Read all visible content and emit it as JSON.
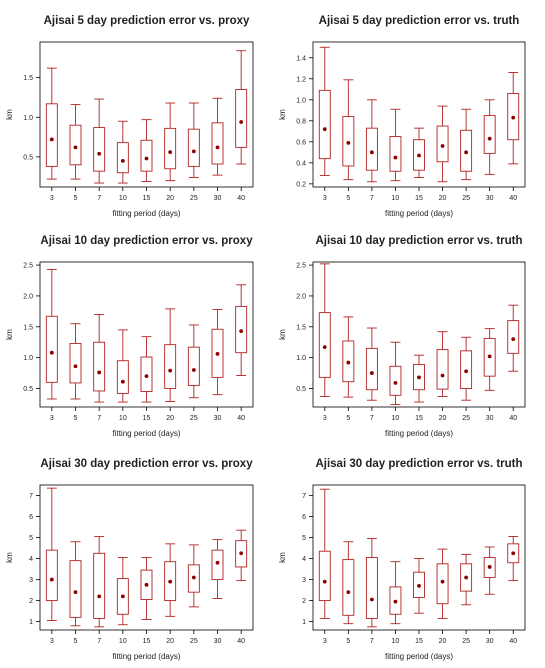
{
  "colors": {
    "box": "#b22222",
    "median": "#8b0000",
    "axis": "#000000",
    "text": "#222222"
  },
  "chart_data": [
    {
      "type": "box",
      "title": "Ajisai 5 day prediction error vs. proxy",
      "xlabel": "fitting period (days)",
      "ylabel": "km",
      "categories": [
        "3",
        "5",
        "7",
        "10",
        "15",
        "20",
        "25",
        "30",
        "40"
      ],
      "ylim": [
        0.12,
        1.95
      ],
      "yticks": [
        0.5,
        1.0,
        1.5
      ],
      "ytick_labels": [
        "0.5",
        "1.0",
        "1.5"
      ],
      "boxes": [
        {
          "low": 0.22,
          "q1": 0.38,
          "med": 0.72,
          "q3": 1.17,
          "high": 1.62
        },
        {
          "low": 0.22,
          "q1": 0.4,
          "med": 0.62,
          "q3": 0.9,
          "high": 1.16
        },
        {
          "low": 0.17,
          "q1": 0.32,
          "med": 0.54,
          "q3": 0.87,
          "high": 1.23
        },
        {
          "low": 0.17,
          "q1": 0.3,
          "med": 0.45,
          "q3": 0.68,
          "high": 0.95
        },
        {
          "low": 0.19,
          "q1": 0.32,
          "med": 0.48,
          "q3": 0.71,
          "high": 0.97
        },
        {
          "low": 0.2,
          "q1": 0.35,
          "med": 0.56,
          "q3": 0.86,
          "high": 1.18
        },
        {
          "low": 0.24,
          "q1": 0.38,
          "med": 0.57,
          "q3": 0.85,
          "high": 1.18
        },
        {
          "low": 0.27,
          "q1": 0.41,
          "med": 0.62,
          "q3": 0.93,
          "high": 1.24
        },
        {
          "low": 0.41,
          "q1": 0.62,
          "med": 0.94,
          "q3": 1.35,
          "high": 1.84
        }
      ]
    },
    {
      "type": "box",
      "title": "Ajisai 5 day prediction error vs. truth",
      "xlabel": "fitting period (days)",
      "ylabel": "km",
      "categories": [
        "3",
        "5",
        "7",
        "10",
        "15",
        "20",
        "25",
        "30",
        "40"
      ],
      "ylim": [
        0.17,
        1.55
      ],
      "yticks": [
        0.2,
        0.4,
        0.6,
        0.8,
        1.0,
        1.2,
        1.4
      ],
      "ytick_labels": [
        "0.2",
        "0.4",
        "0.6",
        "0.8",
        "1.0",
        "1.2",
        "1.4"
      ],
      "boxes": [
        {
          "low": 0.28,
          "q1": 0.44,
          "med": 0.72,
          "q3": 1.09,
          "high": 1.5
        },
        {
          "low": 0.24,
          "q1": 0.37,
          "med": 0.59,
          "q3": 0.84,
          "high": 1.19
        },
        {
          "low": 0.22,
          "q1": 0.33,
          "med": 0.5,
          "q3": 0.73,
          "high": 1.0
        },
        {
          "low": 0.23,
          "q1": 0.32,
          "med": 0.45,
          "q3": 0.65,
          "high": 0.91
        },
        {
          "low": 0.26,
          "q1": 0.33,
          "med": 0.47,
          "q3": 0.62,
          "high": 0.73
        },
        {
          "low": 0.22,
          "q1": 0.41,
          "med": 0.56,
          "q3": 0.75,
          "high": 0.94
        },
        {
          "low": 0.24,
          "q1": 0.32,
          "med": 0.5,
          "q3": 0.71,
          "high": 0.91
        },
        {
          "low": 0.29,
          "q1": 0.49,
          "med": 0.63,
          "q3": 0.85,
          "high": 1.0
        },
        {
          "low": 0.39,
          "q1": 0.62,
          "med": 0.83,
          "q3": 1.06,
          "high": 1.26
        }
      ]
    },
    {
      "type": "box",
      "title": "Ajisai 10 day prediction error vs. proxy",
      "xlabel": "fitting period (days)",
      "ylabel": "km",
      "categories": [
        "3",
        "5",
        "7",
        "10",
        "15",
        "20",
        "25",
        "30",
        "40"
      ],
      "ylim": [
        0.2,
        2.55
      ],
      "yticks": [
        0.5,
        1.0,
        1.5,
        2.0,
        2.5
      ],
      "ytick_labels": [
        "0.5",
        "1.0",
        "1.5",
        "2.0",
        "2.5"
      ],
      "boxes": [
        {
          "low": 0.33,
          "q1": 0.6,
          "med": 1.08,
          "q3": 1.67,
          "high": 2.43
        },
        {
          "low": 0.33,
          "q1": 0.59,
          "med": 0.86,
          "q3": 1.23,
          "high": 1.55
        },
        {
          "low": 0.28,
          "q1": 0.46,
          "med": 0.76,
          "q3": 1.25,
          "high": 1.7
        },
        {
          "low": 0.28,
          "q1": 0.42,
          "med": 0.61,
          "q3": 0.95,
          "high": 1.45
        },
        {
          "low": 0.28,
          "q1": 0.45,
          "med": 0.7,
          "q3": 1.01,
          "high": 1.34
        },
        {
          "low": 0.29,
          "q1": 0.5,
          "med": 0.79,
          "q3": 1.21,
          "high": 1.79
        },
        {
          "low": 0.35,
          "q1": 0.55,
          "med": 0.8,
          "q3": 1.17,
          "high": 1.53
        },
        {
          "low": 0.4,
          "q1": 0.68,
          "med": 1.06,
          "q3": 1.46,
          "high": 1.78
        },
        {
          "low": 0.71,
          "q1": 1.08,
          "med": 1.43,
          "q3": 1.83,
          "high": 2.18
        }
      ]
    },
    {
      "type": "box",
      "title": "Ajisai 10 day prediction error vs. truth",
      "xlabel": "fitting period (days)",
      "ylabel": "km",
      "categories": [
        "3",
        "5",
        "7",
        "10",
        "15",
        "20",
        "25",
        "30",
        "40"
      ],
      "ylim": [
        0.2,
        2.55
      ],
      "yticks": [
        0.5,
        1.0,
        1.5,
        2.0,
        2.5
      ],
      "ytick_labels": [
        "0.5",
        "1.0",
        "1.5",
        "2.0",
        "2.5"
      ],
      "boxes": [
        {
          "low": 0.37,
          "q1": 0.68,
          "med": 1.17,
          "q3": 1.73,
          "high": 2.52
        },
        {
          "low": 0.36,
          "q1": 0.61,
          "med": 0.92,
          "q3": 1.27,
          "high": 1.66
        },
        {
          "low": 0.31,
          "q1": 0.48,
          "med": 0.75,
          "q3": 1.15,
          "high": 1.48
        },
        {
          "low": 0.24,
          "q1": 0.39,
          "med": 0.59,
          "q3": 0.86,
          "high": 1.25
        },
        {
          "low": 0.28,
          "q1": 0.48,
          "med": 0.68,
          "q3": 0.89,
          "high": 1.04
        },
        {
          "low": 0.37,
          "q1": 0.49,
          "med": 0.71,
          "q3": 1.13,
          "high": 1.42
        },
        {
          "low": 0.31,
          "q1": 0.5,
          "med": 0.78,
          "q3": 1.11,
          "high": 1.33
        },
        {
          "low": 0.47,
          "q1": 0.7,
          "med": 1.02,
          "q3": 1.31,
          "high": 1.47
        },
        {
          "low": 0.78,
          "q1": 1.07,
          "med": 1.3,
          "q3": 1.6,
          "high": 1.85
        }
      ]
    },
    {
      "type": "box",
      "title": "Ajisai 30 day prediction error vs. proxy",
      "xlabel": "fitting period (days)",
      "ylabel": "km",
      "categories": [
        "3",
        "5",
        "7",
        "10",
        "15",
        "20",
        "25",
        "30",
        "40"
      ],
      "ylim": [
        0.6,
        7.5
      ],
      "yticks": [
        1,
        2,
        3,
        4,
        5,
        6,
        7
      ],
      "ytick_labels": [
        "1",
        "2",
        "3",
        "4",
        "5",
        "6",
        "7"
      ],
      "boxes": [
        {
          "low": 1.05,
          "q1": 2.0,
          "med": 3.0,
          "q3": 4.4,
          "high": 7.35
        },
        {
          "low": 0.8,
          "q1": 1.2,
          "med": 2.4,
          "q3": 3.9,
          "high": 4.8
        },
        {
          "low": 0.75,
          "q1": 1.15,
          "med": 2.2,
          "q3": 4.25,
          "high": 5.05
        },
        {
          "low": 0.85,
          "q1": 1.35,
          "med": 2.2,
          "q3": 3.05,
          "high": 4.05
        },
        {
          "low": 1.1,
          "q1": 2.05,
          "med": 2.75,
          "q3": 3.45,
          "high": 4.05
        },
        {
          "low": 1.25,
          "q1": 2.0,
          "med": 2.9,
          "q3": 3.85,
          "high": 4.7
        },
        {
          "low": 1.7,
          "q1": 2.4,
          "med": 3.1,
          "q3": 3.7,
          "high": 4.65
        },
        {
          "low": 2.1,
          "q1": 3.0,
          "med": 3.8,
          "q3": 4.4,
          "high": 4.9
        },
        {
          "low": 2.95,
          "q1": 3.6,
          "med": 4.25,
          "q3": 4.85,
          "high": 5.35
        }
      ]
    },
    {
      "type": "box",
      "title": "Ajisai 30 day prediction error vs. truth",
      "xlabel": "fitting period (days)",
      "ylabel": "km",
      "categories": [
        "3",
        "5",
        "7",
        "10",
        "15",
        "20",
        "25",
        "30",
        "40"
      ],
      "ylim": [
        0.6,
        7.5
      ],
      "yticks": [
        1,
        2,
        3,
        4,
        5,
        6,
        7
      ],
      "ytick_labels": [
        "1",
        "2",
        "3",
        "4",
        "5",
        "6",
        "7"
      ],
      "boxes": [
        {
          "low": 1.15,
          "q1": 2.0,
          "med": 2.9,
          "q3": 4.35,
          "high": 7.3
        },
        {
          "low": 0.9,
          "q1": 1.3,
          "med": 2.4,
          "q3": 3.95,
          "high": 4.8
        },
        {
          "low": 0.75,
          "q1": 1.15,
          "med": 2.05,
          "q3": 4.05,
          "high": 4.95
        },
        {
          "low": 0.9,
          "q1": 1.35,
          "med": 1.95,
          "q3": 2.65,
          "high": 3.85
        },
        {
          "low": 1.4,
          "q1": 2.15,
          "med": 2.7,
          "q3": 3.35,
          "high": 4.0
        },
        {
          "low": 1.15,
          "q1": 1.85,
          "med": 2.9,
          "q3": 3.75,
          "high": 4.45
        },
        {
          "low": 1.8,
          "q1": 2.45,
          "med": 3.1,
          "q3": 3.75,
          "high": 4.2
        },
        {
          "low": 2.3,
          "q1": 3.1,
          "med": 3.6,
          "q3": 4.05,
          "high": 4.55
        },
        {
          "low": 2.95,
          "q1": 3.8,
          "med": 4.25,
          "q3": 4.7,
          "high": 5.05
        }
      ]
    }
  ]
}
